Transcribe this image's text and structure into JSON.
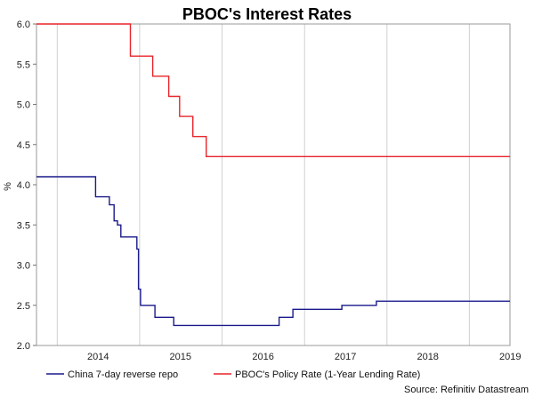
{
  "chart_data": {
    "type": "line",
    "title": "PBOC's Interest Rates",
    "ylabel": "%",
    "xlabel": "",
    "ylim": [
      2.0,
      6.0
    ],
    "y_ticks": [
      "2.0",
      "2.5",
      "3.0",
      "3.5",
      "4.0",
      "4.5",
      "5.0",
      "5.5",
      "6.0"
    ],
    "x_tick_labels": [
      "2014",
      "2015",
      "2016",
      "2017",
      "2018",
      "2019"
    ],
    "x_range": [
      "2013-10-01",
      "2019-06-30"
    ],
    "grid": "vertical",
    "legend_position": "bottom",
    "series": [
      {
        "name": "China 7-day reverse repo",
        "color": "#1a1a8c",
        "points": [
          [
            "2013-10-01",
            4.1
          ],
          [
            "2014-06-20",
            4.1
          ],
          [
            "2014-06-20",
            3.85
          ],
          [
            "2014-08-20",
            3.85
          ],
          [
            "2014-08-20",
            3.75
          ],
          [
            "2014-09-10",
            3.75
          ],
          [
            "2014-09-10",
            3.55
          ],
          [
            "2014-09-25",
            3.55
          ],
          [
            "2014-09-25",
            3.5
          ],
          [
            "2014-10-10",
            3.5
          ],
          [
            "2014-10-10",
            3.35
          ],
          [
            "2014-12-20",
            3.35
          ],
          [
            "2014-12-20",
            3.2
          ],
          [
            "2014-12-27",
            3.2
          ],
          [
            "2014-12-27",
            2.7
          ],
          [
            "2015-01-05",
            2.7
          ],
          [
            "2015-01-05",
            2.5
          ],
          [
            "2015-03-10",
            2.5
          ],
          [
            "2015-03-10",
            2.35
          ],
          [
            "2015-06-01",
            2.35
          ],
          [
            "2015-06-01",
            2.25
          ],
          [
            "2016-09-10",
            2.25
          ],
          [
            "2016-09-10",
            2.35
          ],
          [
            "2016-11-10",
            2.35
          ],
          [
            "2016-11-10",
            2.45
          ],
          [
            "2017-06-15",
            2.45
          ],
          [
            "2017-06-15",
            2.5
          ],
          [
            "2017-11-15",
            2.5
          ],
          [
            "2017-11-15",
            2.55
          ],
          [
            "2019-06-30",
            2.55
          ]
        ]
      },
      {
        "name": "PBOC's Policy Rate (1-Year Lending Rate)",
        "color": "#e8242a",
        "points": [
          [
            "2013-10-01",
            6.0
          ],
          [
            "2014-11-21",
            6.0
          ],
          [
            "2014-11-21",
            5.6
          ],
          [
            "2015-02-28",
            5.6
          ],
          [
            "2015-02-28",
            5.35
          ],
          [
            "2015-05-10",
            5.35
          ],
          [
            "2015-05-10",
            5.1
          ],
          [
            "2015-06-27",
            5.1
          ],
          [
            "2015-06-27",
            4.85
          ],
          [
            "2015-08-25",
            4.85
          ],
          [
            "2015-08-25",
            4.6
          ],
          [
            "2015-10-23",
            4.6
          ],
          [
            "2015-10-23",
            4.35
          ],
          [
            "2019-06-30",
            4.35
          ]
        ]
      }
    ],
    "source": "Source: Refinitiv Datastream"
  }
}
